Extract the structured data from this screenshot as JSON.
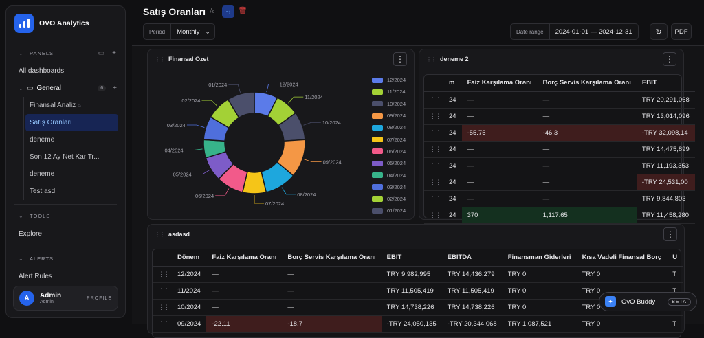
{
  "app": {
    "name": "OVO Analytics"
  },
  "sidebar": {
    "panels_label": "PANELS",
    "all_dashboards": "All dashboards",
    "group": {
      "label": "General",
      "count": "6"
    },
    "items": [
      {
        "label": "Finansal Analiz"
      },
      {
        "label": "Satış Oranları"
      },
      {
        "label": "deneme"
      },
      {
        "label": "Son 12 Ay Net Kar Tr..."
      },
      {
        "label": "deneme"
      },
      {
        "label": "Test asd"
      }
    ],
    "tools_label": "TOOLS",
    "explore": "Explore",
    "alerts_label": "ALERTS",
    "alert_rules": "Alert Rules",
    "profile": {
      "initial": "A",
      "name": "Admin",
      "role": "Admin",
      "button": "PROFILE"
    }
  },
  "header": {
    "title": "Satış Oranları",
    "period_label": "Period",
    "period_value": "Monthly",
    "date_label": "Date range",
    "date_value": "2024-01-01 — 2024-12-31",
    "pdf": "PDF"
  },
  "panels": {
    "finansal": {
      "title": "Finansal Özet"
    },
    "deneme2": {
      "title": "deneme 2",
      "columns": [
        "m",
        "Faiz Karşılama Oranı",
        "Borç Servis Karşılama Oranı",
        "EBIT"
      ],
      "rows": [
        [
          "24",
          "—",
          "—",
          "TRY 20,291,068"
        ],
        [
          "24",
          "—",
          "—",
          "TRY 13,014,096"
        ],
        [
          "24",
          "-55.75",
          "-46.3",
          "-TRY 32,098,14"
        ],
        [
          "24",
          "—",
          "—",
          "TRY 14,475,899"
        ],
        [
          "24",
          "—",
          "—",
          "TRY 11,193,353"
        ],
        [
          "24",
          "—",
          "—",
          "-TRY 24,531,00"
        ],
        [
          "24",
          "—",
          "—",
          "TRY 9,844,803"
        ],
        [
          "24",
          "370",
          "1,117.65",
          "TRY 11,458,280"
        ]
      ]
    },
    "asdasd": {
      "title": "asdasd",
      "columns": [
        "Dönem",
        "Faiz Karşılama Oranı",
        "Borç Servis Karşılama Oranı",
        "EBIT",
        "EBITDA",
        "Finansman Giderleri",
        "Kısa Vadeli Finansal Borç",
        "U"
      ],
      "rows": [
        [
          "12/2024",
          "—",
          "—",
          "TRY 9,982,995",
          "TRY 14,436,279",
          "TRY 0",
          "TRY 0",
          "T"
        ],
        [
          "11/2024",
          "—",
          "—",
          "TRY 11,505,419",
          "TRY 11,505,419",
          "TRY 0",
          "TRY 0",
          "T"
        ],
        [
          "10/2024",
          "—",
          "—",
          "TRY 14,738,226",
          "TRY 14,738,226",
          "TRY 0",
          "TRY 0",
          "T"
        ],
        [
          "09/2024",
          "-22.11",
          "-18.7",
          "-TRY 24,050,135",
          "-TRY 20,344,068",
          "TRY 1,087,521",
          "TRY 0",
          "T"
        ]
      ]
    }
  },
  "chart_data": {
    "type": "pie",
    "donut": true,
    "categories": [
      "12/2024",
      "11/2024",
      "10/2024",
      "09/2024",
      "08/2024",
      "07/2024",
      "06/2024",
      "05/2024",
      "04/2024",
      "03/2024",
      "02/2024",
      "01/2024"
    ],
    "order_clockwise_from_top": [
      "12/2024",
      "11/2024",
      "10/2024",
      "09/2024",
      "08/2024",
      "07/2024",
      "06/2024",
      "05/2024",
      "04/2024",
      "03/2024",
      "02/2024",
      "01/2024"
    ],
    "values": [
      26,
      26,
      31,
      42,
      35,
      26,
      30,
      27,
      20,
      26,
      27,
      30
    ],
    "colors": [
      "#5b7be9",
      "#a3d136",
      "#4b4f6b",
      "#f49745",
      "#1ea7dd",
      "#f5c518",
      "#f25a8a",
      "#7d5cc8",
      "#37b38a",
      "#4f6fdc",
      "#a3d136",
      "#4b4f6b"
    ],
    "legend_position": "right"
  },
  "buddy": {
    "name": "OvO Buddy",
    "badge": "BETA"
  }
}
